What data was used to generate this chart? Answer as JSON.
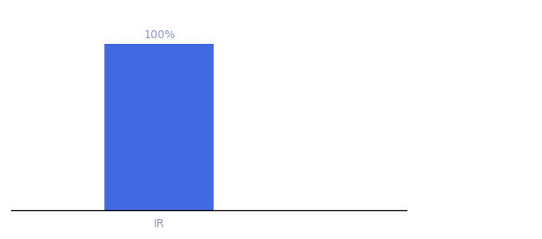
{
  "categories": [
    "IR"
  ],
  "values": [
    100
  ],
  "bar_color": "#4169e1",
  "label_color": "#8896c8",
  "bar_label": "100%",
  "label_fontsize": 10,
  "tick_fontsize": 10,
  "background_color": "#ffffff",
  "ylim": [
    0,
    115
  ],
  "bar_width": 0.55,
  "xlim": [
    -0.75,
    1.25
  ]
}
